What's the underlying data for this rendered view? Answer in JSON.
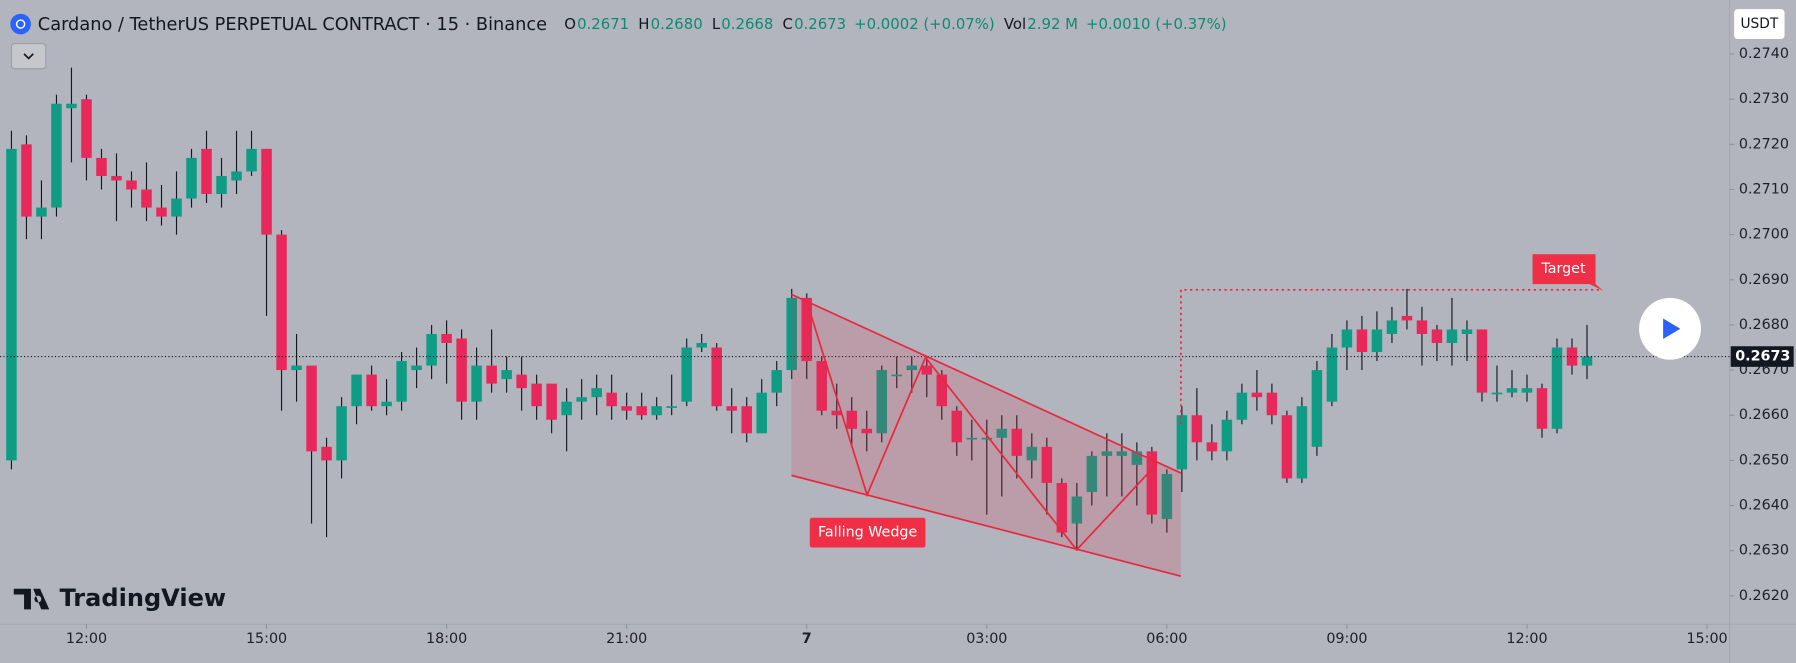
{
  "chart_data": {
    "type": "candlestick",
    "header": {
      "symbol": "Cardano / TetherUS PERPETUAL CONTRACT · 15 · Binance",
      "legend": [
        {
          "key": "O",
          "value": "0.2671"
        },
        {
          "key": "H",
          "value": "0.2680"
        },
        {
          "key": "L",
          "value": "0.2668"
        },
        {
          "key": "C",
          "value": "0.2673"
        },
        {
          "key": "",
          "value": "+0.0002 (+0.07%)"
        },
        {
          "key": "Vol",
          "value": "2.92 M"
        },
        {
          "key": "",
          "value": "+0.0010 (+0.37%)"
        }
      ]
    },
    "currency": "USDT",
    "logo": "TradingView",
    "price_label": "0.2673",
    "annotations": {
      "pattern": "Falling Wedge",
      "target": "Target"
    },
    "up_color": "#0f9c84",
    "down_color": "#e8285a",
    "open": [
      0.265,
      0.272,
      0.2704,
      0.2706,
      0.2728,
      0.273,
      0.2717,
      0.2713,
      0.2712,
      0.271,
      0.2706,
      0.2704,
      0.2708,
      0.2719,
      0.2709,
      0.2712,
      0.2714,
      0.2719,
      0.27,
      0.267,
      0.2671,
      0.2653,
      0.265,
      0.2662,
      0.2669,
      0.2662,
      0.2663,
      0.267,
      0.2671,
      0.2678,
      0.2677,
      0.2663,
      0.2671,
      0.2668,
      0.2669,
      0.2667,
      0.2667,
      0.266,
      0.2663,
      0.2664,
      0.2665,
      0.2662,
      0.2662,
      0.266,
      0.2662,
      0.2663,
      0.2675,
      0.2675,
      0.2662,
      0.2662,
      0.2656,
      0.2665,
      0.267,
      0.2686,
      0.2672,
      0.2661,
      0.2661,
      0.2657,
      0.2656,
      0.2669,
      0.267,
      0.2671,
      0.2669,
      0.2661,
      0.2655,
      0.2655,
      0.2655,
      0.2657,
      0.265,
      0.2653,
      0.2645,
      0.2636,
      0.2643,
      0.2651,
      0.2651,
      0.2649,
      0.2652,
      0.2637,
      0.2648,
      0.266,
      0.2654,
      0.2652,
      0.2659,
      0.2665,
      0.2665,
      0.266,
      0.2646,
      0.2653,
      0.2663,
      0.2675,
      0.2679,
      0.2674,
      0.2678,
      0.2682,
      0.2681,
      0.2679,
      0.2676,
      0.2678,
      0.2679,
      0.2665,
      0.2665,
      0.2665,
      0.2666,
      0.2657,
      0.2675,
      0.2671
    ],
    "high": [
      0.2723,
      0.2722,
      0.2712,
      0.2731,
      0.2737,
      0.2731,
      0.2719,
      0.2718,
      0.2714,
      0.2716,
      0.2711,
      0.2714,
      0.2719,
      0.2723,
      0.2717,
      0.2723,
      0.2723,
      0.2719,
      0.2701,
      0.2678,
      0.267,
      0.2655,
      0.2664,
      0.2669,
      0.2671,
      0.2668,
      0.2674,
      0.2675,
      0.268,
      0.2681,
      0.2679,
      0.2675,
      0.2679,
      0.2673,
      0.2673,
      0.2669,
      0.2666,
      0.2666,
      0.2668,
      0.2669,
      0.2669,
      0.2665,
      0.2665,
      0.2664,
      0.2669,
      0.2677,
      0.2678,
      0.2676,
      0.2666,
      0.2664,
      0.2668,
      0.2672,
      0.2688,
      0.2687,
      0.2673,
      0.2667,
      0.2664,
      0.2661,
      0.2671,
      0.2673,
      0.2673,
      0.2673,
      0.267,
      0.2662,
      0.2659,
      0.2659,
      0.266,
      0.266,
      0.2656,
      0.2655,
      0.2646,
      0.2645,
      0.2652,
      0.2656,
      0.2656,
      0.2654,
      0.2653,
      0.2648,
      0.2662,
      0.2666,
      0.2658,
      0.2661,
      0.2667,
      0.267,
      0.2667,
      0.2661,
      0.2664,
      0.2672,
      0.2678,
      0.2681,
      0.2682,
      0.2683,
      0.2684,
      0.2688,
      0.2684,
      0.268,
      0.2686,
      0.2681,
      0.2679,
      0.2671,
      0.267,
      0.2669,
      0.2667,
      0.2677,
      0.2677,
      0.268
    ],
    "low": [
      0.2648,
      0.2699,
      0.2699,
      0.2704,
      0.2716,
      0.2712,
      0.271,
      0.2703,
      0.2706,
      0.2703,
      0.2702,
      0.27,
      0.2706,
      0.2707,
      0.2706,
      0.2709,
      0.2713,
      0.2682,
      0.2661,
      0.2663,
      0.2636,
      0.2633,
      0.2646,
      0.2658,
      0.2661,
      0.266,
      0.2661,
      0.2666,
      0.2668,
      0.2667,
      0.2659,
      0.2659,
      0.2665,
      0.2665,
      0.2661,
      0.2659,
      0.2656,
      0.2652,
      0.2659,
      0.266,
      0.2659,
      0.2659,
      0.2659,
      0.2659,
      0.266,
      0.2662,
      0.2674,
      0.2661,
      0.2656,
      0.2654,
      0.2656,
      0.2662,
      0.2668,
      0.2668,
      0.266,
      0.2657,
      0.2653,
      0.2652,
      0.2654,
      0.2666,
      0.2665,
      0.2664,
      0.2659,
      0.2651,
      0.265,
      0.2638,
      0.2642,
      0.2646,
      0.2646,
      0.2638,
      0.2633,
      0.263,
      0.264,
      0.2642,
      0.2642,
      0.264,
      0.2636,
      0.2634,
      0.2643,
      0.265,
      0.265,
      0.265,
      0.2658,
      0.2661,
      0.2658,
      0.2645,
      0.2645,
      0.2651,
      0.2662,
      0.267,
      0.267,
      0.2672,
      0.2676,
      0.2679,
      0.2671,
      0.2672,
      0.2671,
      0.2672,
      0.2663,
      0.2663,
      0.2664,
      0.2663,
      0.2655,
      0.2656,
      0.2669,
      0.2668
    ],
    "close": [
      0.2719,
      0.2704,
      0.2706,
      0.2729,
      0.2729,
      0.2717,
      0.2713,
      0.2712,
      0.271,
      0.2706,
      0.2704,
      0.2708,
      0.2717,
      0.2709,
      0.2713,
      0.2714,
      0.2719,
      0.27,
      0.267,
      0.2671,
      0.2652,
      0.265,
      0.2662,
      0.2669,
      0.2662,
      0.2663,
      0.2672,
      0.2671,
      0.2678,
      0.2676,
      0.2663,
      0.2671,
      0.2667,
      0.267,
      0.2666,
      0.2662,
      0.2659,
      0.2663,
      0.2664,
      0.2666,
      0.2662,
      0.2661,
      0.266,
      0.2662,
      0.2662,
      0.2675,
      0.2676,
      0.2662,
      0.2661,
      0.2656,
      0.2665,
      0.267,
      0.2686,
      0.2672,
      0.2661,
      0.266,
      0.2657,
      0.2656,
      0.267,
      0.2669,
      0.2671,
      0.2669,
      0.2662,
      0.2654,
      0.2655,
      0.2655,
      0.2657,
      0.2651,
      0.2653,
      0.2645,
      0.2634,
      0.2642,
      0.2651,
      0.2652,
      0.2652,
      0.2652,
      0.2638,
      0.2647,
      0.266,
      0.2654,
      0.2652,
      0.2659,
      0.2665,
      0.2664,
      0.266,
      0.2646,
      0.2662,
      0.267,
      0.2675,
      0.2679,
      0.2674,
      0.2679,
      0.2681,
      0.2681,
      0.2678,
      0.2676,
      0.2679,
      0.2679,
      0.2665,
      0.2665,
      0.2666,
      0.2666,
      0.2657,
      0.2675,
      0.2671,
      0.2673
    ],
    "xlim": [
      -0.763,
      114.5
    ],
    "xticks": [
      {
        "value": 5,
        "label": "12:00"
      },
      {
        "value": 17,
        "label": "15:00"
      },
      {
        "value": 29,
        "label": "18:00"
      },
      {
        "value": 41,
        "label": "21:00"
      },
      {
        "value": 53,
        "label": "7"
      },
      {
        "value": 65,
        "label": "03:00"
      },
      {
        "value": 77,
        "label": "06:00"
      },
      {
        "value": 89,
        "label": "09:00"
      },
      {
        "value": 101,
        "label": "12:00"
      },
      {
        "value": 113,
        "label": "15:00"
      }
    ],
    "ylim": [
      0.26137,
      0.27507
    ],
    "yticks": [
      {
        "value": 0.274,
        "label": "0.2740"
      },
      {
        "value": 0.273,
        "label": "0.2730"
      },
      {
        "value": 0.272,
        "label": "0.2720"
      },
      {
        "value": 0.271,
        "label": "0.2710"
      },
      {
        "value": 0.27,
        "label": "0.2700"
      },
      {
        "value": 0.269,
        "label": "0.2690"
      },
      {
        "value": 0.268,
        "label": "0.2680"
      },
      {
        "value": 0.267,
        "label": "0.2670"
      },
      {
        "value": 0.266,
        "label": "0.2660"
      },
      {
        "value": 0.265,
        "label": "0.2650"
      },
      {
        "value": 0.264,
        "label": "0.2640"
      },
      {
        "value": 0.263,
        "label": "0.2630"
      },
      {
        "value": 0.262,
        "label": "0.2620"
      }
    ],
    "grid": false
  }
}
